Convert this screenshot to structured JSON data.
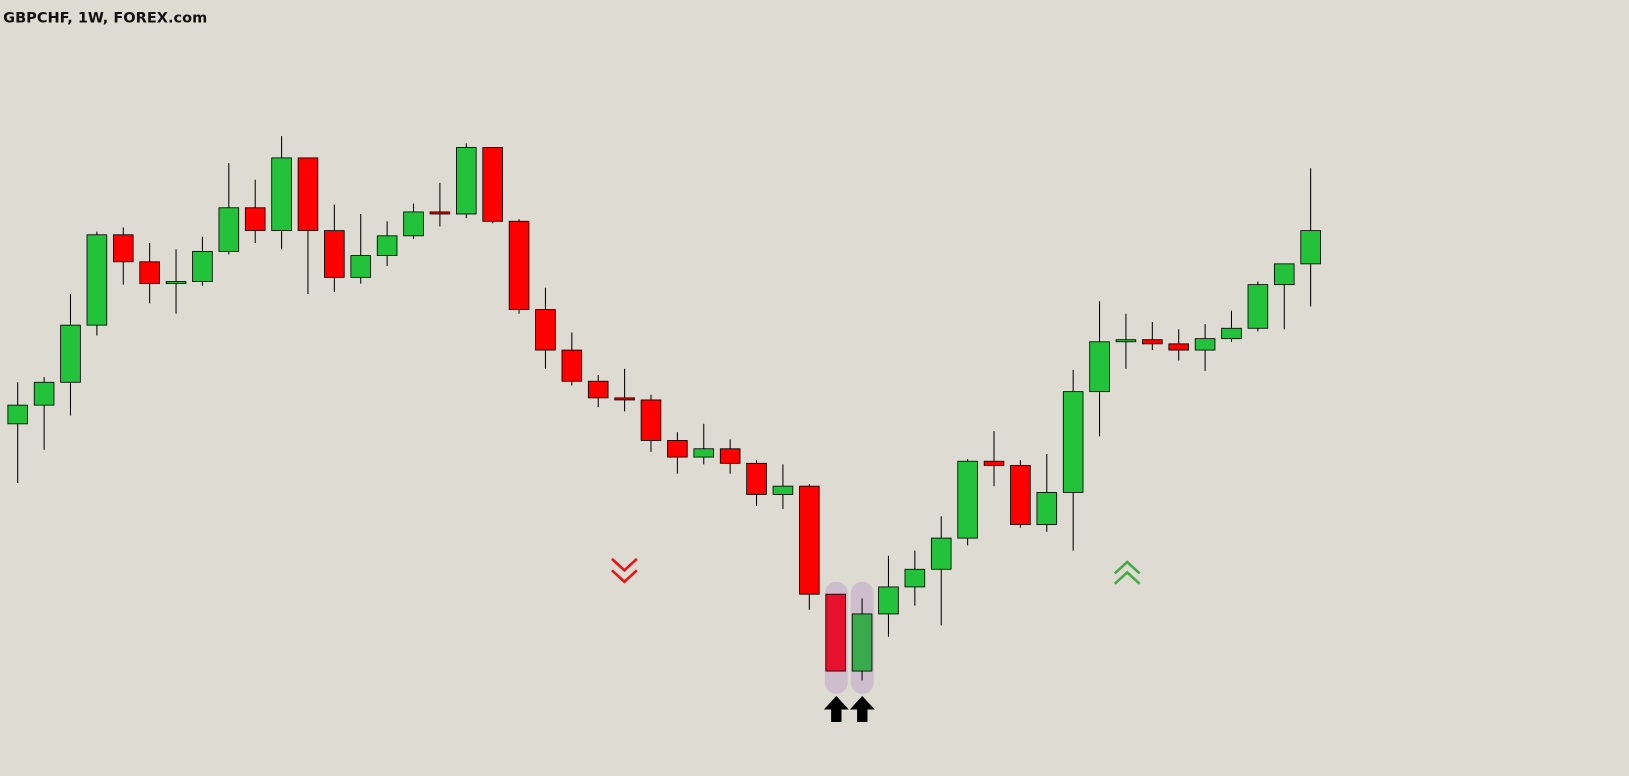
{
  "chart_data": {
    "type": "candlestick",
    "title": "GBPCHF, 1W, FOREX.com",
    "ylim": [
      0,
      747
    ],
    "open": [
      339,
      357,
      379,
      434,
      521,
      495,
      474,
      476,
      505,
      547,
      525,
      595,
      525,
      480,
      501,
      520,
      543,
      541,
      605,
      534,
      449,
      410,
      380,
      364,
      362,
      323,
      307,
      315,
      301,
      271,
      279,
      175,
      101,
      156,
      182,
      199,
      229,
      303,
      299,
      242,
      273,
      370,
      418,
      420,
      416,
      410,
      421,
      431,
      473,
      493
    ],
    "high": [
      379,
      384,
      464,
      524,
      528,
      513,
      507,
      519,
      590,
      574,
      616,
      595,
      550,
      541,
      534,
      551,
      571,
      609,
      605,
      536,
      470,
      427,
      386,
      392,
      367,
      331,
      339,
      324,
      304,
      300,
      281,
      175,
      171,
      212,
      217,
      250,
      305,
      332,
      304,
      310,
      391,
      457,
      445,
      437,
      430,
      435,
      448,
      476,
      493,
      585
    ],
    "low": [
      282,
      314,
      347,
      424,
      473,
      455,
      445,
      472,
      502,
      513,
      507,
      464,
      466,
      474,
      491,
      517,
      529,
      537,
      532,
      445,
      392,
      376,
      355,
      351,
      312,
      291,
      300,
      291,
      260,
      257,
      160,
      101,
      92,
      134,
      164,
      145,
      222,
      279,
      239,
      235,
      217,
      327,
      392,
      410,
      400,
      390,
      418,
      428,
      430,
      452
    ],
    "close": [
      357,
      379,
      434,
      521,
      495,
      474,
      476,
      505,
      547,
      525,
      595,
      525,
      480,
      501,
      520,
      543,
      541,
      605,
      534,
      449,
      410,
      380,
      364,
      362,
      323,
      307,
      315,
      301,
      271,
      279,
      175,
      101,
      156,
      182,
      199,
      229,
      303,
      299,
      242,
      273,
      370,
      418,
      420,
      416,
      410,
      421,
      431,
      473,
      493,
      525
    ],
    "colors": [
      "#22c33a",
      "#22c33a",
      "#22c33a",
      "#22c33a",
      "#ff0000",
      "#ff0000",
      "#22c33a",
      "#22c33a",
      "#22c33a",
      "#ff0000",
      "#22c33a",
      "#ff0000",
      "#ff0000",
      "#22c33a",
      "#22c33a",
      "#22c33a",
      "#ff0000",
      "#22c33a",
      "#ff0000",
      "#ff0000",
      "#ff0000",
      "#ff0000",
      "#ff0000",
      "#ff0000",
      "#ff0000",
      "#ff0000",
      "#22c33a",
      "#ff0000",
      "#ff0000",
      "#22c33a",
      "#ff0000",
      "#e8112d",
      "#3aab4c",
      "#22c33a",
      "#22c33a",
      "#22c33a",
      "#22c33a",
      "#ff0000",
      "#ff0000",
      "#22c33a",
      "#22c33a",
      "#22c33a",
      "#22c33a",
      "#ff0000",
      "#ff0000",
      "#22c33a",
      "#22c33a",
      "#22c33a",
      "#22c33a",
      "#22c33a"
    ]
  }
}
